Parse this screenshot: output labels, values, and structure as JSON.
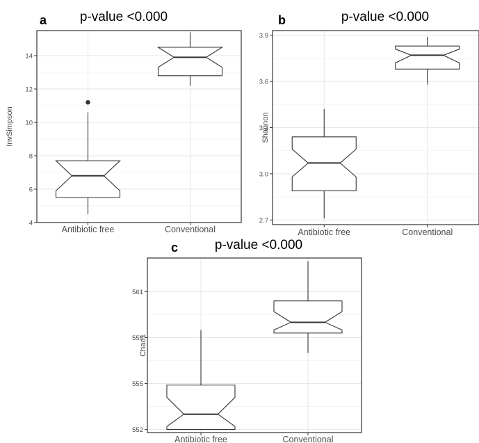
{
  "chart_data": [
    {
      "type": "boxplot",
      "panel_label": "a",
      "title": "p-value <0.000",
      "xlabel": "",
      "ylabel": "InvSimpson",
      "ylim": [
        4,
        15.5
      ],
      "yticks": [
        4,
        6,
        8,
        10,
        12,
        14
      ],
      "grid": true,
      "notched": true,
      "categories": [
        "Antibiotic free",
        "Conventional"
      ],
      "boxes": [
        {
          "category": "Antibiotic free",
          "whisker_low": 4.5,
          "q1": 5.5,
          "median": 6.8,
          "q3": 7.7,
          "whisker_high": 10.6,
          "notch_low": 5.9,
          "notch_high": 7.7,
          "outliers": [
            11.2
          ]
        },
        {
          "category": "Conventional",
          "whisker_low": 12.2,
          "q1": 12.8,
          "median": 13.9,
          "q3": 14.5,
          "whisker_high": 15.4,
          "notch_low": 13.3,
          "notch_high": 14.5,
          "outliers": []
        }
      ]
    },
    {
      "type": "boxplot",
      "panel_label": "b",
      "title": "p-value <0.000",
      "xlabel": "",
      "ylabel": "Shannon",
      "ylim": [
        2.67,
        3.93
      ],
      "yticks": [
        2.7,
        3.0,
        3.3,
        3.6,
        3.9
      ],
      "grid": true,
      "notched": true,
      "categories": [
        "Antibiotic free",
        "Conventional"
      ],
      "boxes": [
        {
          "category": "Antibiotic free",
          "whisker_low": 2.71,
          "q1": 2.89,
          "median": 3.07,
          "q3": 3.24,
          "whisker_high": 3.42,
          "notch_low": 2.98,
          "notch_high": 3.16,
          "outliers": []
        },
        {
          "category": "Conventional",
          "whisker_low": 3.58,
          "q1": 3.68,
          "median": 3.77,
          "q3": 3.83,
          "whisker_high": 3.89,
          "notch_low": 3.72,
          "notch_high": 3.81,
          "outliers": []
        }
      ]
    },
    {
      "type": "boxplot",
      "panel_label": "c",
      "title": "p-value <0.000",
      "xlabel": "",
      "ylabel": "Chao1",
      "ylim": [
        551.8,
        563.2
      ],
      "yticks": [
        552,
        555,
        558,
        561
      ],
      "grid": true,
      "notched": true,
      "categories": [
        "Antibiotic free",
        "Conventional"
      ],
      "boxes": [
        {
          "category": "Antibiotic free",
          "whisker_low": 552,
          "q1": 552,
          "median": 553,
          "q3": 554.9,
          "whisker_high": 558.5,
          "notch_low": 552.2,
          "notch_high": 554.1,
          "outliers": []
        },
        {
          "category": "Conventional",
          "whisker_low": 557,
          "q1": 558.3,
          "median": 559,
          "q3": 560.4,
          "whisker_high": 563,
          "notch_low": 558.5,
          "notch_high": 559.7,
          "outliers": []
        }
      ]
    }
  ]
}
